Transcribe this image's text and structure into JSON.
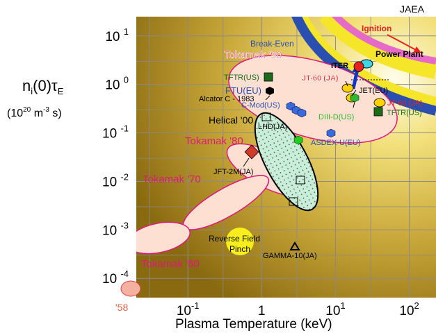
{
  "header": {
    "org_label": "JAEA"
  },
  "chart_data": {
    "type": "scatter",
    "title": "",
    "xlabel": "Plasma  Temperature (keV)",
    "ylabel_main": "n",
    "ylabel_sub_i": "i",
    "ylabel_mid": "(0)τ",
    "ylabel_sub_e": "E",
    "ylabel_units_open": "(10",
    "ylabel_units_exp": "20",
    "ylabel_units_rest": " m",
    "ylabel_units_exp2": "-3",
    "ylabel_units_close": " s)",
    "x_scale": "log",
    "y_scale": "log",
    "xlim": [
      0.02,
      230
    ],
    "ylim": [
      4e-05,
      25
    ],
    "grid": true,
    "x_ticks": [
      {
        "value": 0.1,
        "base": "10",
        "exp": "-1"
      },
      {
        "value": 1,
        "label": "1"
      },
      {
        "value": 10,
        "base": "10",
        "exp": "1"
      },
      {
        "value": 100,
        "base": "10",
        "exp": "2"
      }
    ],
    "y_ticks": [
      {
        "value": 10,
        "base": "10",
        "exp": "1"
      },
      {
        "value": 1,
        "base": "10",
        "exp": "0"
      },
      {
        "value": 0.1,
        "base": "10",
        "exp": "-1"
      },
      {
        "value": 0.01,
        "base": "10",
        "exp": "-2"
      },
      {
        "value": 0.001,
        "base": "10",
        "exp": "-3"
      },
      {
        "value": 0.0001,
        "base": "10",
        "exp": "-4"
      }
    ],
    "regions": [
      {
        "label": "Ignition",
        "color": "#e82020"
      },
      {
        "label": "Break-Even",
        "color": "#2a4fb0"
      },
      {
        "label": "Power Plant",
        "color": "#000000"
      }
    ],
    "era_labels": [
      {
        "label": "Tokamak '90",
        "color": "#e0187a"
      },
      {
        "label": "Tokamak '80",
        "color": "#e0187a"
      },
      {
        "label": "Tokamak '70",
        "color": "#e0187a"
      },
      {
        "label": "Tokamak '60",
        "color": "#e0187a"
      },
      {
        "label": "'58",
        "color": "#e06040"
      },
      {
        "label": "Helical '00",
        "color": "#000000"
      },
      {
        "label": "Reverse Field",
        "color": "#000000"
      },
      {
        "label": "Pinch",
        "color": "#000000"
      }
    ],
    "points": [
      {
        "label": "ITER",
        "x": 15,
        "y": 0.9,
        "color": "#e82020"
      },
      {
        "label": "JT-60 (JA)",
        "x": 14,
        "y": 0.55,
        "color": "#e82020"
      },
      {
        "label": "JET(EU)",
        "x": 16,
        "y": 0.4,
        "color": "#000000"
      },
      {
        "label": "JT-60 (JA)",
        "x": 40,
        "y": 0.38,
        "color": "#e82020"
      },
      {
        "label": "TFTR(US)",
        "x": 1.3,
        "y": 1.1,
        "color": "#1a6b1a"
      },
      {
        "label": "TFTR(US)",
        "x": 40,
        "y": 0.25,
        "color": "#1a6b1a"
      },
      {
        "label": "FTU(EU)",
        "x": 1.35,
        "y": 0.65,
        "color": "#2a4fb0"
      },
      {
        "label": "Alcator C - 1983",
        "x": 1.35,
        "y": 0.65,
        "color": "#000000"
      },
      {
        "label": "C-Mod(US)",
        "x": 2.0,
        "y": 0.33,
        "color": "#2a4fb0"
      },
      {
        "label": "DIII-D(US)",
        "x": 17,
        "y": 0.38,
        "color": "#2db82d"
      },
      {
        "label": "LHD(JA)",
        "x": 3.0,
        "y": 0.07,
        "color": "#000000"
      },
      {
        "label": "ASDEX-U(EU)",
        "x": 9.0,
        "y": 0.05,
        "color": "#2a4fb0"
      },
      {
        "label": "JFT-2M(JA)",
        "x": 1.2,
        "y": 0.035,
        "color": "#000000"
      },
      {
        "label": "GAMMA-10(JA)",
        "x": 2.5,
        "y": 0.0004,
        "color": "#000000"
      }
    ]
  }
}
